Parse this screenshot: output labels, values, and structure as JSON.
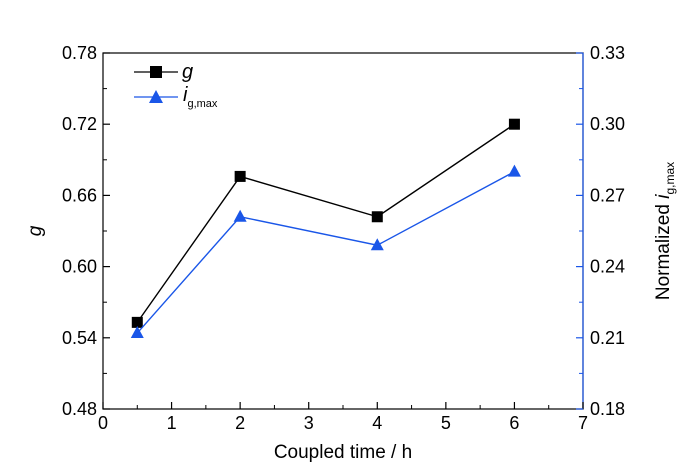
{
  "chart_data": {
    "type": "line",
    "x": [
      0.5,
      2,
      4,
      6
    ],
    "xlabel": "Coupled time / h",
    "xlim": [
      0,
      7
    ],
    "x_ticks": [
      "0",
      "1",
      "2",
      "3",
      "4",
      "5",
      "6",
      "7"
    ],
    "ylabel_left": "g",
    "ylim_left": [
      0.48,
      0.78
    ],
    "y_ticks_left": [
      "0.48",
      "0.54",
      "0.60",
      "0.66",
      "0.72",
      "0.78"
    ],
    "ylabel_right": {
      "prefix": "Normalized ",
      "main": "i",
      "subscript": "g,max"
    },
    "ylim_right": [
      0.18,
      0.33
    ],
    "y_ticks_right": [
      "0.18",
      "0.21",
      "0.24",
      "0.27",
      "0.30",
      "0.33"
    ],
    "grid": false,
    "legend_position": "top-left",
    "series": [
      {
        "name": "g",
        "axis": "left",
        "marker": "square",
        "color": "#000000",
        "values": [
          0.553,
          0.676,
          0.642,
          0.72
        ]
      },
      {
        "name": "i",
        "name_subscript": "g,max",
        "axis": "right",
        "marker": "triangle",
        "color": "#1a56e8",
        "values": [
          0.212,
          0.261,
          0.249,
          0.28
        ]
      }
    ]
  }
}
